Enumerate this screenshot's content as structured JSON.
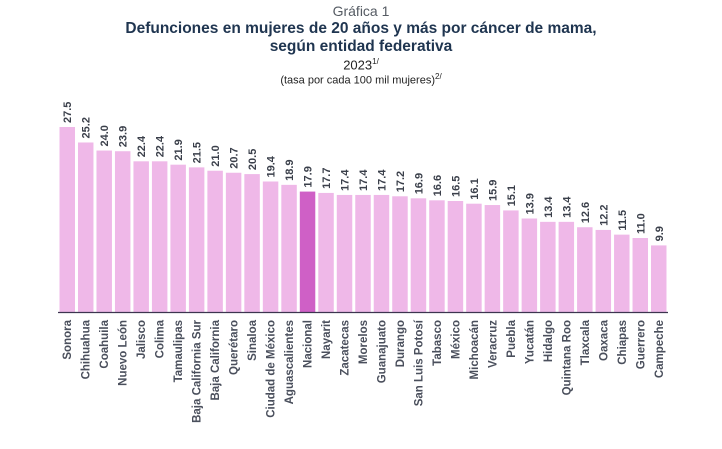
{
  "chart_data": {
    "type": "bar",
    "kicker": "Gráfica 1",
    "title_line1": "Defunciones en mujeres de 20 años y más por cáncer de mama,",
    "title_line2": "según entidad federativa",
    "year": "2023",
    "year_note": "1/",
    "unit": "(tasa por cada 100 mil mujeres)",
    "unit_note": "2/",
    "xlabel": "",
    "ylabel": "",
    "ylim": [
      0,
      27.5
    ],
    "grid": false,
    "categories": [
      "Sonora",
      "Chihuahua",
      "Coahuila",
      "Nuevo León",
      "Jalisco",
      "Colima",
      "Tamaulipas",
      "Baja California Sur",
      "Baja California",
      "Querétaro",
      "Sinaloa",
      "Ciudad de México",
      "Aguascalientes",
      "Nacional",
      "Nayarit",
      "Zacatecas",
      "Morelos",
      "Guanajuato",
      "Durango",
      "San Luis Potosí",
      "Tabasco",
      "México",
      "Michoacán",
      "Veracruz",
      "Puebla",
      "Yucatán",
      "Hidalgo",
      "Quintana Roo",
      "Tlaxcala",
      "Oaxaca",
      "Chiapas",
      "Guerrero",
      "Campeche"
    ],
    "values": [
      27.5,
      25.2,
      24.0,
      23.9,
      22.4,
      22.4,
      21.9,
      21.5,
      21.0,
      20.7,
      20.5,
      19.4,
      18.9,
      17.9,
      17.7,
      17.4,
      17.4,
      17.4,
      17.2,
      16.9,
      16.6,
      16.5,
      16.1,
      15.9,
      15.1,
      13.9,
      13.4,
      13.4,
      12.6,
      12.2,
      11.5,
      11.0,
      9.9
    ],
    "labels": [
      "27.5",
      "25.2",
      "24.0",
      "23.9",
      "22.4",
      "22.4",
      "21.9",
      "21.5",
      "21.0",
      "20.7",
      "20.5",
      "19.4",
      "18.9",
      "17.9",
      "17.7",
      "17.4",
      "17.4",
      "17.4",
      "17.2",
      "16.9",
      "16.6",
      "16.5",
      "16.1",
      "15.9",
      "15.1",
      "13.9",
      "13.4",
      "13.4",
      "12.6",
      "12.2",
      "11.5",
      "11.0",
      "9.9"
    ],
    "highlight": "Nacional",
    "colors": {
      "bar": "#efb8e8",
      "highlight": "#cf60c6",
      "axis": "#3d3550"
    }
  }
}
